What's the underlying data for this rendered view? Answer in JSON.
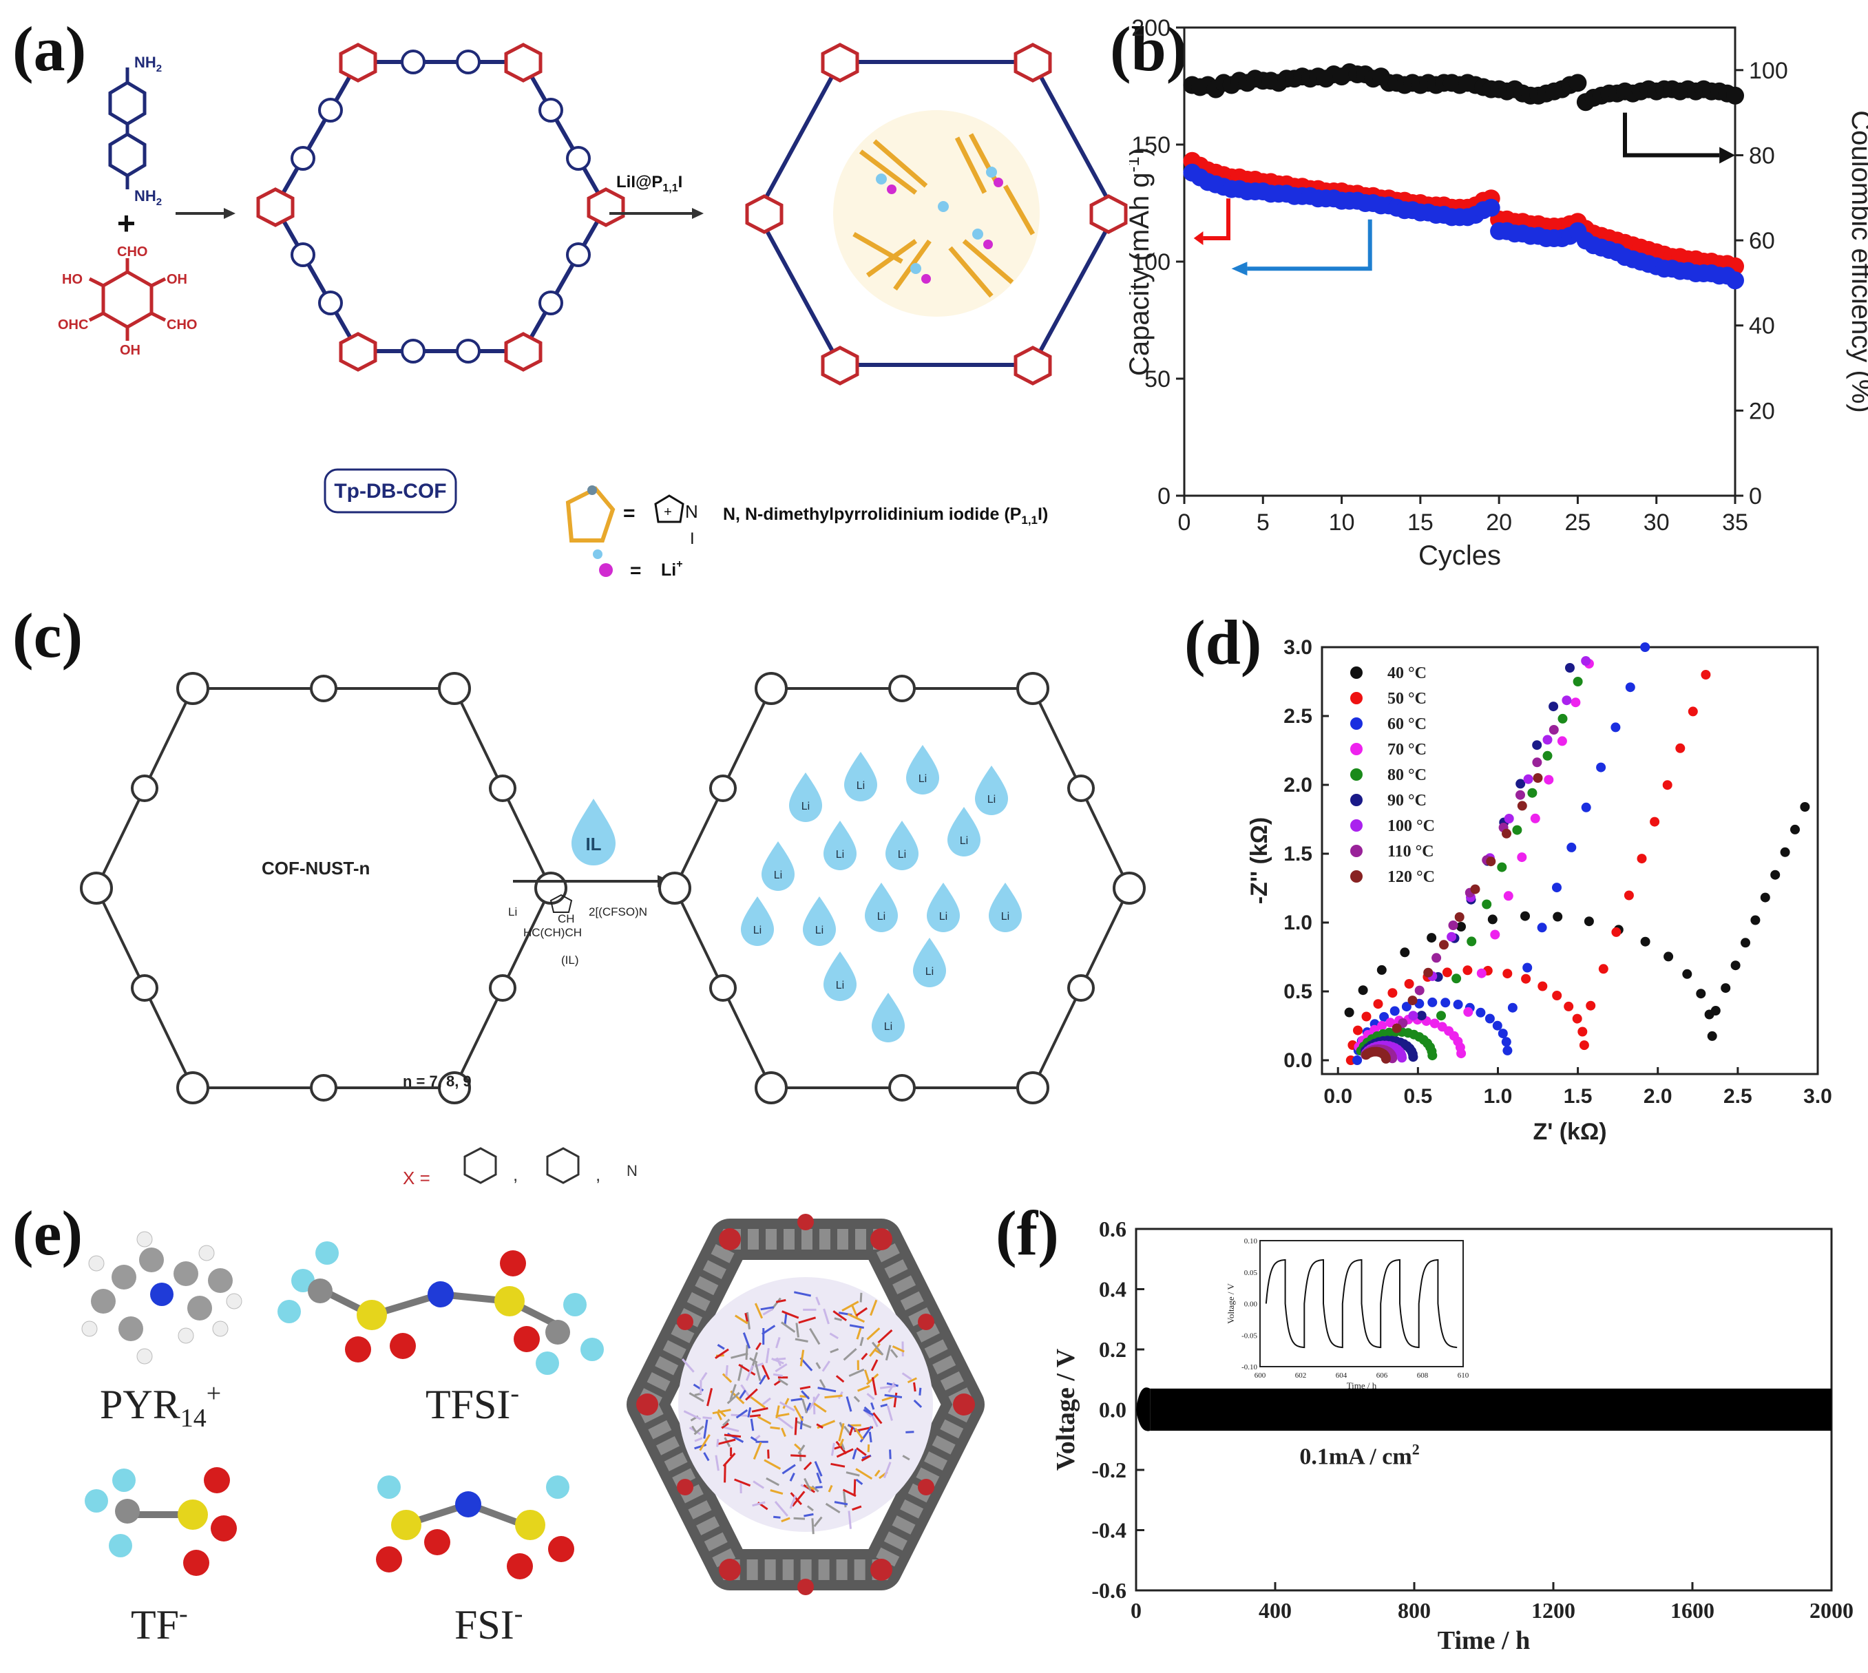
{
  "panel_labels": [
    "(a)",
    "(b)",
    "(c)",
    "(d)",
    "(e)",
    "(f)"
  ],
  "panel_a": {
    "cof_name": "Tp-DB-COF",
    "reaction_label": "LiI@P",
    "reaction_sub": "1,1",
    "reaction_suffix": "I",
    "legend_ion_text": "N, N-dimethylpyrrolidinium iodide (P",
    "legend_ion_sub": "1,1",
    "legend_ion_suffix": "I)",
    "legend_li": "Li",
    "legend_li_sup": "+",
    "iodide": "I",
    "nitrogen": "N",
    "plus": "+",
    "monomer_amine": "NH",
    "monomer_amine_sub": "2",
    "monomer_cho": "CHO",
    "monomer_oh": "OH",
    "monomer_ho": "HO",
    "monomer_ohc": "OHC",
    "equals": "="
  },
  "panel_c": {
    "cof_name": "COF-NUST-n",
    "n_values": "n = 7, 8, 9",
    "il_drop": "IL",
    "il_label": "(IL)",
    "il_li": "Li",
    "il_anion": "2[(CF",
    "il_anion2": "SO",
    "il_anion3": ")",
    "il_anion4": "N",
    "il_chain": "H",
    "il_chain2": "C(CH",
    "il_chain3": ")",
    "il_chain4": "CH",
    "x_label": "X =",
    "drop_text": "Li",
    "sep": ","
  },
  "panel_e": {
    "labels": [
      "PYR",
      "TFSI",
      "TF",
      "FSI"
    ],
    "pyr_sub": "14",
    "pyr_sup": "+",
    "anion_sup": "-"
  },
  "colors": {
    "black_series": "#111111",
    "red_series": "#ee1111",
    "blue_series": "#1a2ee0",
    "arrow_blue": "#1e7fd0",
    "cof_red": "#c0282d",
    "cof_blue": "#1f2a77",
    "drop": "#8fd3f0"
  },
  "chart_data": [
    {
      "id": "b",
      "type": "scatter",
      "title": "",
      "xlabel": "Cycles",
      "ylabel": "Capacity (mAh g-1)",
      "ylabel_parts": [
        "Capacity (mAh g",
        "-1",
        ")"
      ],
      "y2label": "Coulombic efficiency (%)",
      "xlim": [
        0,
        35
      ],
      "ylim": [
        0,
        200
      ],
      "y2lim": [
        0,
        110
      ],
      "xticks": [
        0,
        5,
        10,
        15,
        20,
        25,
        30,
        35
      ],
      "yticks": [
        0,
        50,
        100,
        150,
        200
      ],
      "y2ticks": [
        0,
        20,
        40,
        60,
        80,
        100
      ],
      "series": [
        {
          "name": "Coulombic efficiency",
          "axis": "right",
          "color": "#111111",
          "x": [
            0.5,
            1,
            1.5,
            2,
            2.5,
            3,
            3.5,
            4,
            4.5,
            5,
            5.5,
            6,
            6.5,
            7,
            7.5,
            8,
            8.5,
            9,
            9.5,
            10,
            10.5,
            11,
            11.5,
            12,
            12.5,
            13,
            13.5,
            14,
            14.5,
            15,
            15.5,
            16,
            16.5,
            17,
            17.5,
            18,
            18.5,
            19,
            19.5,
            20,
            20.5,
            21,
            21.5,
            22,
            22.5,
            23,
            23.5,
            24,
            24.5,
            25,
            25.5,
            26,
            26.5,
            27,
            27.5,
            28,
            28.5,
            29,
            29.5,
            30,
            30.5,
            31,
            31.5,
            32,
            32.5,
            33,
            33.5,
            34,
            34.5,
            35
          ],
          "y": [
            96.5,
            96,
            96.5,
            95.5,
            97,
            96.5,
            97.5,
            97,
            98,
            97.5,
            97.5,
            97,
            98,
            98,
            98.5,
            98,
            98.5,
            98,
            99,
            98.5,
            99.5,
            99,
            99,
            98,
            98.5,
            97,
            97,
            96.5,
            97,
            96.5,
            97,
            96.5,
            97,
            97,
            96.5,
            97,
            96.5,
            96,
            95.5,
            95.5,
            95,
            95.5,
            94.5,
            94,
            94,
            94.5,
            95,
            95.5,
            96.5,
            97,
            92.5,
            93.5,
            94,
            94.5,
            94.5,
            95,
            94.5,
            95,
            95.5,
            95,
            95.5,
            95.5,
            95,
            95.5,
            95,
            95.5,
            95,
            95,
            94.5,
            94
          ]
        },
        {
          "name": "Capacity (red)",
          "axis": "left",
          "color": "#ee1111",
          "x": [
            0.5,
            1,
            1.5,
            2,
            2.5,
            3,
            3.5,
            4,
            4.5,
            5,
            5.5,
            6,
            6.5,
            7,
            7.5,
            8,
            8.5,
            9,
            9.5,
            10,
            10.5,
            11,
            11.5,
            12,
            12.5,
            13,
            13.5,
            14,
            14.5,
            15,
            15.5,
            16,
            16.5,
            17,
            17.5,
            18,
            18.5,
            19,
            19.5,
            20,
            20.5,
            21,
            21.5,
            22,
            22.5,
            23,
            23.5,
            24,
            24.5,
            25,
            25.5,
            26,
            26.5,
            27,
            27.5,
            28,
            28.5,
            29,
            29.5,
            30,
            30.5,
            31,
            31.5,
            32,
            32.5,
            33,
            33.5,
            34,
            34.5,
            35
          ],
          "y": [
            143,
            141,
            139,
            138,
            137,
            136,
            136,
            135,
            135,
            134,
            134,
            133,
            133,
            132,
            132,
            131,
            131,
            130,
            130,
            130,
            129,
            129,
            128,
            128,
            127,
            127,
            126,
            126,
            125,
            125,
            124,
            124,
            124,
            123,
            123,
            123,
            124,
            126,
            127,
            118,
            118,
            117,
            117,
            116,
            116,
            115,
            115,
            115,
            116,
            117,
            114,
            112,
            111,
            110,
            109,
            108,
            107,
            106,
            105,
            104,
            103,
            102,
            102,
            101,
            101,
            100,
            100,
            99,
            99,
            98
          ]
        },
        {
          "name": "Capacity (blue)",
          "axis": "left",
          "color": "#1a2ee0",
          "x": [
            0.5,
            1,
            1.5,
            2,
            2.5,
            3,
            3.5,
            4,
            4.5,
            5,
            5.5,
            6,
            6.5,
            7,
            7.5,
            8,
            8.5,
            9,
            9.5,
            10,
            10.5,
            11,
            11.5,
            12,
            12.5,
            13,
            13.5,
            14,
            14.5,
            15,
            15.5,
            16,
            16.5,
            17,
            17.5,
            18,
            18.5,
            19,
            19.5,
            20,
            20.5,
            21,
            21.5,
            22,
            22.5,
            23,
            23.5,
            24,
            24.5,
            25,
            25.5,
            26,
            26.5,
            27,
            27.5,
            28,
            28.5,
            29,
            29.5,
            30,
            30.5,
            31,
            31.5,
            32,
            32.5,
            33,
            33.5,
            34,
            34.5,
            35
          ],
          "y": [
            138,
            136,
            134,
            133,
            132,
            131,
            131,
            130,
            130,
            130,
            129,
            129,
            129,
            128,
            128,
            128,
            127,
            127,
            127,
            126,
            126,
            126,
            125,
            125,
            124,
            124,
            123,
            122,
            122,
            121,
            121,
            120,
            120,
            119,
            119,
            119,
            120,
            122,
            123,
            113,
            113,
            112,
            112,
            111,
            111,
            110,
            110,
            110,
            111,
            113,
            109,
            107,
            106,
            105,
            104,
            102,
            101,
            100,
            99,
            98,
            97,
            97,
            96,
            96,
            95,
            95,
            95,
            94,
            94,
            92
          ]
        }
      ],
      "annotations": []
    },
    {
      "id": "d",
      "type": "scatter",
      "title": "",
      "xlabel": "Z' (kΩ)",
      "ylabel": "-Z'' (kΩ)",
      "xlim": [
        -0.1,
        3.0
      ],
      "ylim": [
        -0.1,
        3.0
      ],
      "xticks": [
        0.0,
        0.5,
        1.0,
        1.5,
        2.0,
        2.5,
        3.0
      ],
      "yticks": [
        0.0,
        0.5,
        1.0,
        1.5,
        2.0,
        2.5,
        3.0
      ],
      "tick_labels": [
        "0.0",
        "0.5",
        "1.0",
        "1.5",
        "2.0",
        "2.5",
        "3.0"
      ],
      "legend_position": "top-left",
      "series": [
        {
          "name": "40 °C",
          "color": "#111111",
          "center": 1.17,
          "radius": 1.17,
          "x0": 0.03,
          "tail_start": 2.3,
          "tail_end": 2.92,
          "tail_top": 1.84
        },
        {
          "name": "50 °C",
          "color": "#ee1111",
          "center": 0.81,
          "radius": 0.73,
          "x0": 0.07,
          "tail_start": 1.5,
          "tail_end": 2.3,
          "tail_top": 2.8
        },
        {
          "name": "60 °C",
          "color": "#1a2ee0",
          "center": 0.59,
          "radius": 0.47,
          "x0": 0.1,
          "tail_start": 1.0,
          "tail_end": 1.92,
          "tail_top": 3.0
        },
        {
          "name": "70 °C",
          "color": "#ee22ee",
          "center": 0.44,
          "radius": 0.33,
          "x0": 0.12,
          "tail_start": 0.73,
          "tail_end": 1.57,
          "tail_top": 2.88
        },
        {
          "name": "80 °C",
          "color": "#1a8a1a",
          "center": 0.36,
          "radius": 0.23,
          "x0": 0.14,
          "tail_start": 0.55,
          "tail_end": 1.5,
          "tail_top": 2.75
        },
        {
          "name": "90 °C",
          "color": "#1a1a88",
          "center": 0.31,
          "radius": 0.16,
          "x0": 0.16,
          "tail_start": 0.42,
          "tail_end": 1.45,
          "tail_top": 2.85
        },
        {
          "name": "100 °C",
          "color": "#aa22ee",
          "center": 0.28,
          "radius": 0.12,
          "x0": 0.17,
          "tail_start": 0.35,
          "tail_end": 1.55,
          "tail_top": 2.9
        },
        {
          "name": "110 °C",
          "color": "#992299",
          "center": 0.25,
          "radius": 0.09,
          "x0": 0.17,
          "tail_start": 0.3,
          "tail_end": 1.35,
          "tail_top": 2.4
        },
        {
          "name": "120 °C",
          "color": "#882222",
          "center": 0.23,
          "radius": 0.07,
          "x0": 0.17,
          "tail_start": 0.27,
          "tail_end": 1.25,
          "tail_top": 2.05
        }
      ]
    },
    {
      "id": "f",
      "type": "line",
      "title": "",
      "xlabel": "Time / h",
      "ylabel": "Voltage / V",
      "xlim": [
        0,
        2000
      ],
      "ylim": [
        -0.6,
        0.6
      ],
      "xticks": [
        0,
        400,
        800,
        1200,
        1600,
        2000
      ],
      "yticks": [
        -0.6,
        -0.4,
        -0.2,
        0.0,
        0.2,
        0.4,
        0.6
      ],
      "ytick_labels": [
        "-0.6",
        "-0.4",
        "-0.2",
        "0.0",
        "0.2",
        "0.4",
        "0.6"
      ],
      "band": {
        "upper": 0.07,
        "lower": -0.07,
        "initial_peak": 0.09,
        "initial_trough": -0.08
      },
      "annotation": "0.1mA / cm",
      "annotation_sup": "2",
      "inset": {
        "xlabel": "Time / h",
        "ylabel": "Voltage / V",
        "xlim": [
          600,
          610
        ],
        "ylim": [
          -0.1,
          0.1
        ],
        "xticks": [
          600,
          602,
          604,
          606,
          608,
          610
        ],
        "yticks": [
          -0.1,
          -0.05,
          0.0,
          0.05,
          0.1
        ],
        "ytick_labels": [
          "-0.10",
          "-0.05",
          "0.00",
          "0.05",
          "0.10"
        ],
        "cycles": 5,
        "amplitude": 0.07
      }
    }
  ]
}
